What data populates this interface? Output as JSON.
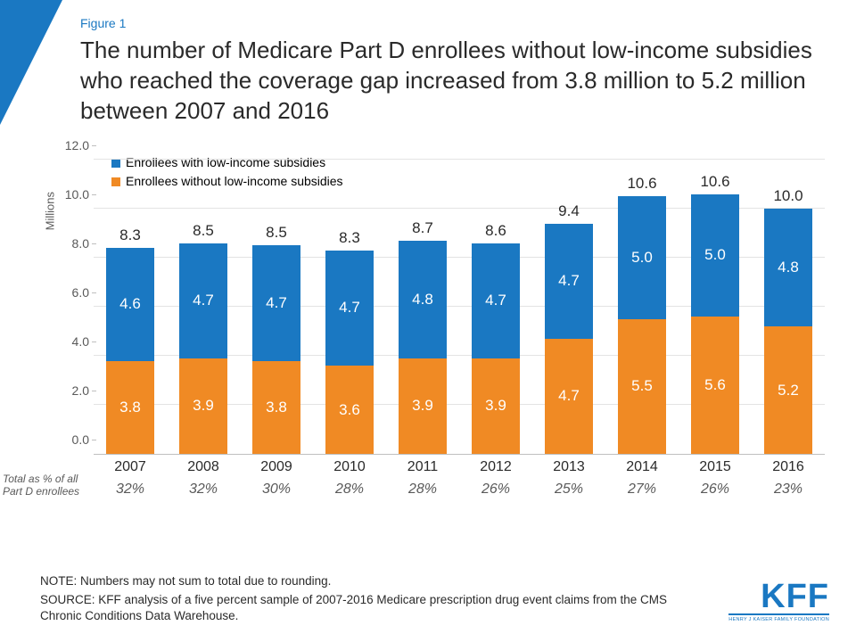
{
  "figure_label": "Figure 1",
  "title": "The number of Medicare Part D enrollees without low-income subsidies who reached the coverage gap increased from 3.8 million to 5.2 million between 2007 and 2016",
  "yaxis_label": "Millions",
  "legend": {
    "with": "Enrollees with low-income subsidies",
    "without": "Enrollees without low-income subsidies"
  },
  "colors": {
    "with": "#1a78c2",
    "without": "#f08a24",
    "text_on_bar": "#ffffff",
    "axis_text": "#595959",
    "grid": "#e3e3e3",
    "title": "#2a2a2a"
  },
  "chart": {
    "type": "stacked-bar",
    "ylim": [
      0,
      12
    ],
    "ytick_step": 2,
    "bar_width_pct": 66,
    "years": [
      "2007",
      "2008",
      "2009",
      "2010",
      "2011",
      "2012",
      "2013",
      "2014",
      "2015",
      "2016"
    ],
    "without_values": [
      3.8,
      3.9,
      3.8,
      3.6,
      3.9,
      3.9,
      4.7,
      5.5,
      5.6,
      5.2
    ],
    "with_values": [
      4.6,
      4.7,
      4.7,
      4.7,
      4.8,
      4.7,
      4.7,
      5.0,
      5.0,
      4.8
    ],
    "totals": [
      8.3,
      8.5,
      8.5,
      8.3,
      8.7,
      8.6,
      9.4,
      10.6,
      10.6,
      10.0
    ],
    "pct_of_all": [
      "32%",
      "32%",
      "30%",
      "28%",
      "28%",
      "26%",
      "25%",
      "27%",
      "26%",
      "23%"
    ]
  },
  "pct_row_label": "Total as % of all Part D enrollees",
  "footer": {
    "note": "NOTE: Numbers may not sum to total due to rounding.",
    "source": "SOURCE: KFF analysis of a five percent sample of 2007-2016 Medicare prescription drug event claims from the CMS Chronic Conditions Data Warehouse."
  },
  "logo": {
    "big": "KFF",
    "small": "HENRY J KAISER FAMILY FOUNDATION"
  }
}
